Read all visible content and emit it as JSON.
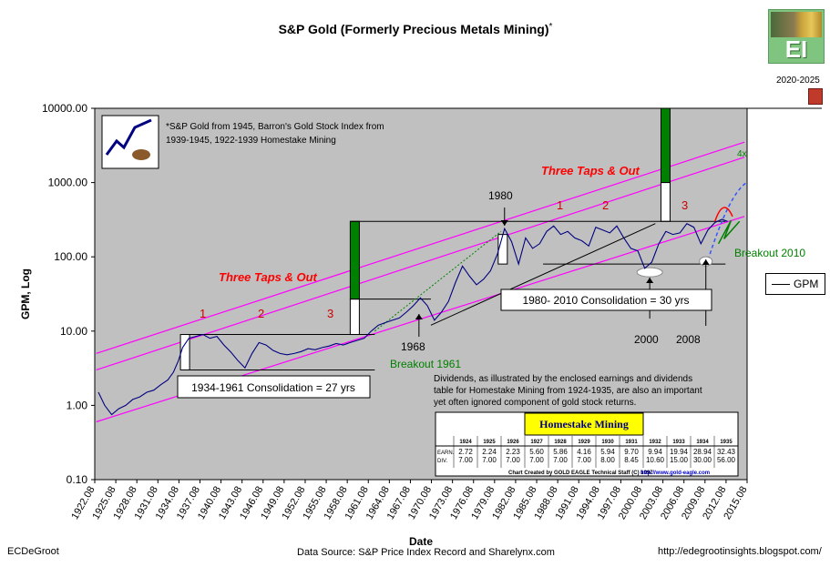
{
  "header": {
    "title": "S&P Gold (Formerly Precious Metals Mining)",
    "title_mark": "*"
  },
  "branding": {
    "logo_text": "EI",
    "years": "2020-2025",
    "icon": "book-icon"
  },
  "footer": {
    "left": "ECDeGroot",
    "center": "Data Source: S&P Price Index Record and Sharelynx.com",
    "right": "http://edegrootinsights.blogspot.com/"
  },
  "chart_data": {
    "type": "line",
    "yscale": "log",
    "ylabel": "GPM, Log",
    "xlabel": "Date",
    "ylim": [
      0.1,
      10000
    ],
    "y_ticks": [
      "10000.00",
      "1000.00",
      "100.00",
      "10.00",
      "1.00",
      "0.10"
    ],
    "x_ticks": [
      "1922.08",
      "1925.08",
      "1928.08",
      "1931.08",
      "1934.08",
      "1937.08",
      "1940.08",
      "1943.08",
      "1946.08",
      "1949.08",
      "1952.08",
      "1955.08",
      "1958.08",
      "1961.08",
      "1964.08",
      "1967.08",
      "1970.08",
      "1973.08",
      "1976.08",
      "1979.08",
      "1982.08",
      "1985.08",
      "1988.08",
      "1991.08",
      "1994.08",
      "1997.08",
      "2000.08",
      "2003.08",
      "2006.08",
      "2009.08",
      "2012.08",
      "2015.08"
    ],
    "legend": {
      "position": "right",
      "entries": [
        "GPM"
      ]
    },
    "series": [
      {
        "name": "GPM",
        "color": "#000080",
        "points": [
          [
            1922.6,
            1.5
          ],
          [
            1923.5,
            1.0
          ],
          [
            1924.5,
            0.75
          ],
          [
            1925.5,
            0.9
          ],
          [
            1926.5,
            1.0
          ],
          [
            1927.5,
            1.2
          ],
          [
            1928.5,
            1.3
          ],
          [
            1929.5,
            1.5
          ],
          [
            1930.5,
            1.6
          ],
          [
            1931.5,
            1.9
          ],
          [
            1932.5,
            2.2
          ],
          [
            1933.3,
            2.8
          ],
          [
            1934.0,
            4.0
          ],
          [
            1934.6,
            6.0
          ],
          [
            1935.5,
            8.0
          ],
          [
            1936.5,
            8.5
          ],
          [
            1937.5,
            9.0
          ],
          [
            1938.5,
            8.0
          ],
          [
            1939.5,
            8.5
          ],
          [
            1940.5,
            6.5
          ],
          [
            1941.5,
            5.2
          ],
          [
            1942.5,
            4.0
          ],
          [
            1943.5,
            3.2
          ],
          [
            1944.5,
            5.0
          ],
          [
            1945.5,
            7.0
          ],
          [
            1946.5,
            6.5
          ],
          [
            1947.5,
            5.5
          ],
          [
            1948.5,
            5.0
          ],
          [
            1949.5,
            4.8
          ],
          [
            1950.5,
            5.0
          ],
          [
            1951.5,
            5.3
          ],
          [
            1952.5,
            5.8
          ],
          [
            1953.5,
            5.6
          ],
          [
            1954.5,
            6.0
          ],
          [
            1955.5,
            6.3
          ],
          [
            1956.5,
            6.8
          ],
          [
            1957.5,
            6.5
          ],
          [
            1958.5,
            7.0
          ],
          [
            1959.5,
            7.5
          ],
          [
            1960.5,
            8.0
          ],
          [
            1961.5,
            10.0
          ],
          [
            1962.5,
            12.0
          ],
          [
            1963.5,
            13.0
          ],
          [
            1964.5,
            14.0
          ],
          [
            1965.5,
            15.0
          ],
          [
            1966.5,
            18.0
          ],
          [
            1967.5,
            22.0
          ],
          [
            1968.5,
            28.0
          ],
          [
            1969.5,
            22.0
          ],
          [
            1970.5,
            14.0
          ],
          [
            1971.5,
            18.0
          ],
          [
            1972.5,
            25.0
          ],
          [
            1973.5,
            45.0
          ],
          [
            1974.5,
            75.0
          ],
          [
            1975.5,
            55.0
          ],
          [
            1976.5,
            42.0
          ],
          [
            1977.5,
            50.0
          ],
          [
            1978.5,
            65.0
          ],
          [
            1979.5,
            110.0
          ],
          [
            1980.5,
            240.0
          ],
          [
            1981.5,
            160.0
          ],
          [
            1982.5,
            80.0
          ],
          [
            1983.5,
            180.0
          ],
          [
            1984.5,
            130.0
          ],
          [
            1985.5,
            150.0
          ],
          [
            1986.5,
            220.0
          ],
          [
            1987.5,
            260.0
          ],
          [
            1988.5,
            200.0
          ],
          [
            1989.5,
            220.0
          ],
          [
            1990.5,
            180.0
          ],
          [
            1991.5,
            165.0
          ],
          [
            1992.5,
            140.0
          ],
          [
            1993.5,
            250.0
          ],
          [
            1994.5,
            230.0
          ],
          [
            1995.5,
            210.0
          ],
          [
            1996.5,
            260.0
          ],
          [
            1997.5,
            180.0
          ],
          [
            1998.5,
            130.0
          ],
          [
            1999.5,
            120.0
          ],
          [
            2000.5,
            70.0
          ],
          [
            2001.5,
            85.0
          ],
          [
            2002.5,
            150.0
          ],
          [
            2003.5,
            220.0
          ],
          [
            2004.5,
            200.0
          ],
          [
            2005.5,
            210.0
          ],
          [
            2006.5,
            280.0
          ],
          [
            2007.5,
            250.0
          ],
          [
            2008.5,
            150.0
          ],
          [
            2009.5,
            230.0
          ],
          [
            2010.5,
            290.0
          ],
          [
            2011.5,
            320.0
          ],
          [
            2012.3,
            300.0
          ]
        ]
      }
    ],
    "annotations": [
      {
        "text": "*S&P Gold from 1945, Barron's Gold Stock Index from",
        "kind": "note"
      },
      {
        "text": "1939-1945, 1922-1939 Homestake Mining",
        "kind": "note"
      },
      {
        "text": "Three Taps & Out",
        "kind": "label"
      },
      {
        "text": "Three Taps & Out",
        "kind": "label"
      },
      {
        "text": "1",
        "kind": "tap"
      },
      {
        "text": "2",
        "kind": "tap"
      },
      {
        "text": "3",
        "kind": "tap"
      },
      {
        "text": "1",
        "kind": "tap"
      },
      {
        "text": "2",
        "kind": "tap"
      },
      {
        "text": "3",
        "kind": "tap"
      },
      {
        "text": "1934-1961 Consolidation = 27 yrs",
        "kind": "box"
      },
      {
        "text": "1980- 2010 Consolidation = 30 yrs",
        "kind": "box"
      },
      {
        "text": "Breakout 1961",
        "kind": "label"
      },
      {
        "text": "Breakout 2010",
        "kind": "label"
      },
      {
        "text": "1968",
        "kind": "label"
      },
      {
        "text": "1980",
        "kind": "label"
      },
      {
        "text": "2000",
        "kind": "label"
      },
      {
        "text": "2008",
        "kind": "label"
      },
      {
        "text": "4x",
        "kind": "label"
      },
      {
        "text": "Dividends, as illustrated by the enclosed earnings and dividends",
        "kind": "note"
      },
      {
        "text": "table for Homestake Mining from 1924-1935, are also an important",
        "kind": "note"
      },
      {
        "text": "yet often ignored component of gold stock returns.",
        "kind": "note"
      }
    ],
    "table": {
      "title": "Homestake Mining",
      "years": [
        "1924",
        "1925",
        "1926",
        "1927",
        "1928",
        "1929",
        "1930",
        "1931",
        "1932",
        "1933",
        "1934",
        "1935"
      ],
      "rows": [
        {
          "label": "EARN.",
          "values": [
            "2.72",
            "2.24",
            "2.23",
            "5.60",
            "5.86",
            "4.16",
            "5.94",
            "9.70",
            "9.94",
            "19.94",
            "28.94",
            "32.43"
          ]
        },
        {
          "label": "DIV.",
          "values": [
            "7.00",
            "7.00",
            "7.00",
            "7.00",
            "7.00",
            "7.00",
            "8.00",
            "8.45",
            "10.60",
            "15.00",
            "30.00",
            "56.00"
          ]
        }
      ],
      "credit": "Chart Created by GOLD EAGLE Technical Staff (C) 1997",
      "url": "http://www.gold-eagle.com"
    }
  }
}
